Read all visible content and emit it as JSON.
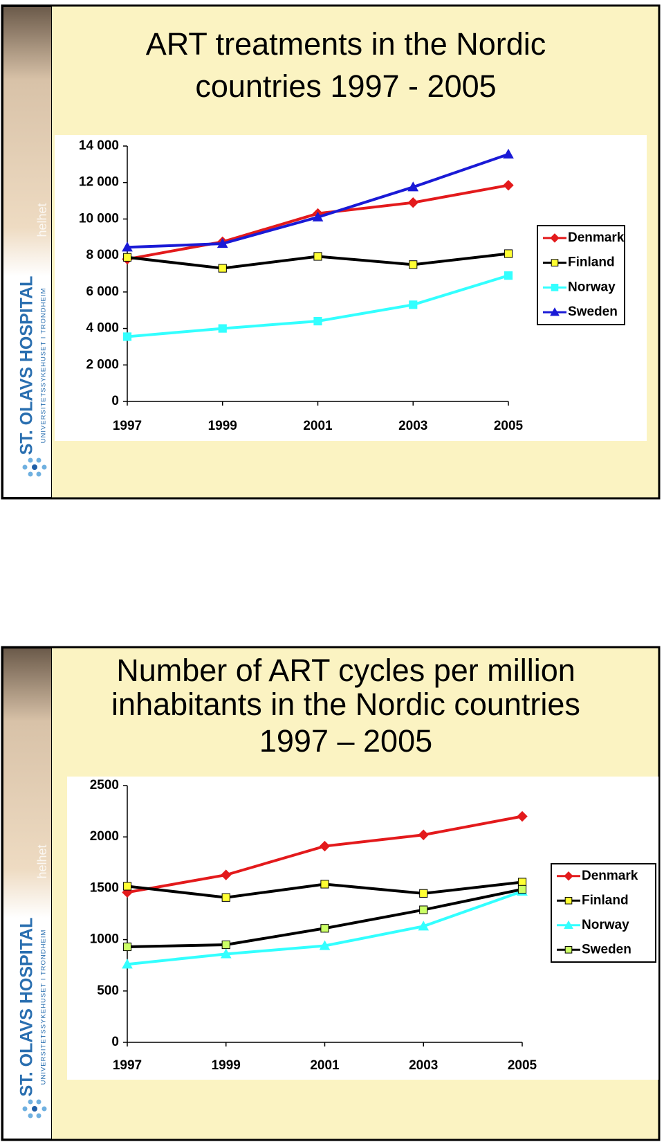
{
  "branding": {
    "name": "ST. OLAVS HOSPITAL",
    "subtitle": "UNIVERSITETSSYKEHUSET I TRONDHEIM",
    "tagline": "helhet"
  },
  "chart_data": [
    {
      "type": "line",
      "title": [
        "ART treatments  in the Nordic",
        "countries 1997 - 2005"
      ],
      "x": [
        1997,
        1999,
        2001,
        2003,
        2005
      ],
      "xlim": [
        1997,
        2005
      ],
      "xticks": [
        1997,
        1999,
        2001,
        2003,
        2005
      ],
      "ylim": [
        0,
        14000
      ],
      "yticks": [
        0,
        {
          "value": 2000,
          "label": "2 000"
        },
        {
          "value": 4000,
          "label": "4 000"
        },
        {
          "value": 6000,
          "label": "6 000"
        },
        {
          "value": 8000,
          "label": "8 000"
        },
        {
          "value": 10000,
          "label": "10 000"
        },
        {
          "value": 12000,
          "label": "12 000"
        },
        {
          "value": 14000,
          "label": "14 000"
        }
      ],
      "legend": "right",
      "series": [
        {
          "name": "Denmark",
          "color": "#e31a1c",
          "marker": "diamond",
          "marker_fill": "#e31a1c",
          "values": [
            7800,
            8750,
            10300,
            10900,
            11850
          ]
        },
        {
          "name": "Finland",
          "color": "#000000",
          "marker": "square",
          "marker_fill": "#ffff33",
          "values": [
            7900,
            7300,
            7950,
            7500,
            8100
          ]
        },
        {
          "name": "Norway",
          "color": "#33ffff",
          "marker": "square",
          "marker_fill": "#33ffff",
          "values": [
            3550,
            4000,
            4400,
            5300,
            6900
          ]
        },
        {
          "name": "Sweden",
          "color": "#1a1ad6",
          "marker": "triangle",
          "marker_fill": "#1a1ad6",
          "values": [
            8450,
            8650,
            10100,
            11750,
            13550
          ]
        }
      ]
    },
    {
      "type": "line",
      "title": [
        "Number of ART cycles per million",
        "inhabitants  in the Nordic countries",
        "1997 – 2005"
      ],
      "x": [
        1997,
        1999,
        2001,
        2003,
        2005
      ],
      "xlim": [
        1997,
        2005
      ],
      "xticks": [
        1997,
        1999,
        2001,
        2003,
        2005
      ],
      "ylim": [
        0,
        2500
      ],
      "yticks": [
        0,
        500,
        1000,
        1500,
        2000,
        2500
      ],
      "legend": "right",
      "series": [
        {
          "name": "Denmark",
          "color": "#e31a1c",
          "marker": "diamond",
          "marker_fill": "#e31a1c",
          "values": [
            1460,
            1630,
            1910,
            2020,
            2200
          ]
        },
        {
          "name": "Finland",
          "color": "#000000",
          "marker": "square",
          "marker_fill": "#ffff33",
          "values": [
            1520,
            1410,
            1540,
            1450,
            1560
          ]
        },
        {
          "name": "Norway",
          "color": "#33ffff",
          "marker": "triangle",
          "marker_fill": "#33ffff",
          "values": [
            760,
            860,
            940,
            1130,
            1470
          ]
        },
        {
          "name": "Sweden",
          "color": "#000000",
          "marker": "square",
          "marker_fill": "#ccff66",
          "values": [
            930,
            950,
            1110,
            1290,
            1490
          ]
        }
      ]
    }
  ]
}
